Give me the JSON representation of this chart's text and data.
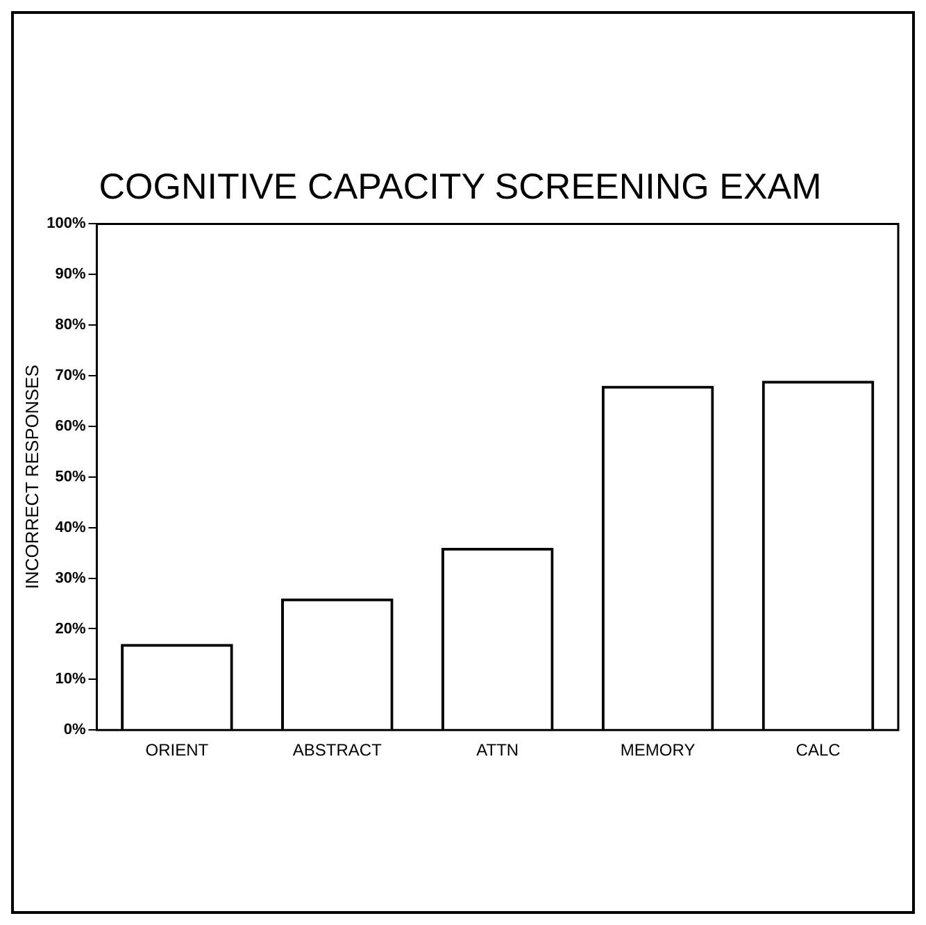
{
  "chart_data": {
    "type": "bar",
    "title": "COGNITIVE CAPACITY SCREENING EXAM",
    "ylabel": "INCORRECT RESPONSES",
    "categories": [
      "ORIENT",
      "ABSTRACT",
      "ATTN",
      "MEMORY",
      "CALC"
    ],
    "values": [
      17,
      26,
      36,
      68,
      69
    ],
    "color": "#000000",
    "ylim": [
      0,
      100
    ],
    "yticks": [
      {
        "value": 0,
        "label": "0%"
      },
      {
        "value": 10,
        "label": "10%"
      },
      {
        "value": 20,
        "label": "20%"
      },
      {
        "value": 30,
        "label": "30%"
      },
      {
        "value": 40,
        "label": "40%"
      },
      {
        "value": 50,
        "label": "50%"
      },
      {
        "value": 60,
        "label": "60%"
      },
      {
        "value": 70,
        "label": "70%"
      },
      {
        "value": 80,
        "label": "80%"
      },
      {
        "value": 90,
        "label": "90%"
      },
      {
        "value": 100,
        "label": "100%"
      }
    ],
    "grid": false,
    "legend": false
  }
}
